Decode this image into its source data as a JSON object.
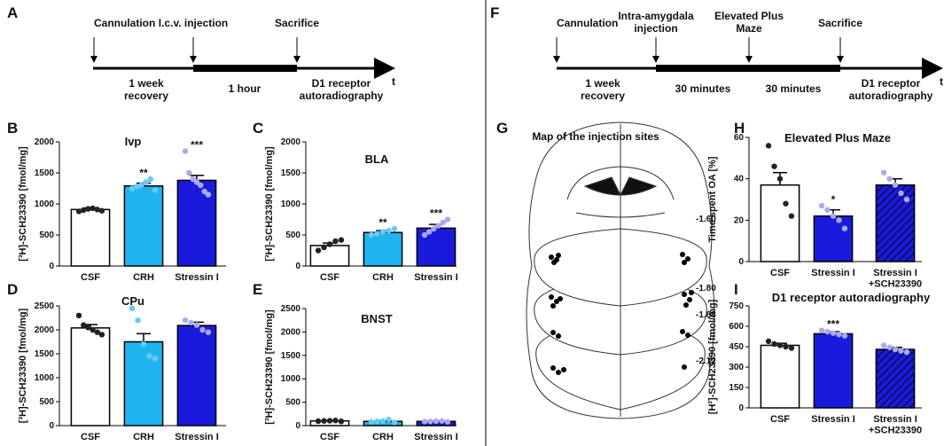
{
  "timelines": [
    {
      "letter": "A",
      "events": [
        "Cannulation",
        "I.c.v. injection",
        "Sacrifice"
      ],
      "periods": [
        "1 week\nrecovery",
        "1 hour",
        "D1 receptor\nautoradiography"
      ],
      "axis_label": "t"
    },
    {
      "letter": "F",
      "events": [
        "Cannulation",
        "Intra-amygdala\ninjection",
        "Elevated Plus\nMaze",
        "Sacrifice"
      ],
      "periods": [
        "1 week\nrecovery",
        "30 minutes",
        "30 minutes",
        "D1 receptor\nautoradiography"
      ],
      "axis_label": "t"
    }
  ],
  "injection_map": {
    "letter": "G",
    "title": "Map of the injection sites",
    "levels": [
      "-1.60",
      "-1.80",
      "-1.88",
      "-2.12"
    ]
  },
  "chart_data": [
    {
      "type": "bar",
      "letter": "B",
      "title": "Ivp",
      "ylabel": "[³H]-SCH23390 [fmol/mg]",
      "categories": [
        "CSF",
        "CRH",
        "Stressin I"
      ],
      "values": [
        910,
        1290,
        1380
      ],
      "errors": [
        25,
        45,
        80
      ],
      "points": [
        [
          880,
          900,
          920,
          930,
          910,
          890
        ],
        [
          1250,
          1280,
          1300,
          1350,
          1400,
          1220
        ],
        [
          1850,
          1500,
          1400,
          1350,
          1300,
          1200,
          1150
        ]
      ],
      "stars": [
        null,
        "**",
        "***"
      ],
      "colors": [
        "#ffffff",
        "#1eb4f0",
        "#1a1adc"
      ],
      "point_colors": [
        "#222222",
        "#6cc9f5",
        "#aaaaf0"
      ],
      "hatch": [
        false,
        false,
        false
      ],
      "ylim": [
        0,
        2000
      ],
      "yticks": [
        0,
        500,
        1000,
        1500,
        2000
      ]
    },
    {
      "type": "bar",
      "letter": "C",
      "title": "BLA",
      "ylabel": "[³H]-SCH23390 [fmol/mg]",
      "categories": [
        "CSF",
        "CRH",
        "Stressin I"
      ],
      "values": [
        330,
        540,
        610
      ],
      "errors": [
        40,
        30,
        60
      ],
      "points": [
        [
          250,
          300,
          350,
          400,
          420
        ],
        [
          500,
          520,
          550,
          570,
          600
        ],
        [
          500,
          550,
          600,
          650,
          700,
          750
        ]
      ],
      "stars": [
        null,
        "**",
        "***"
      ],
      "colors": [
        "#ffffff",
        "#1eb4f0",
        "#1a1adc"
      ],
      "point_colors": [
        "#222222",
        "#6cc9f5",
        "#aaaaf0"
      ],
      "hatch": [
        false,
        false,
        false
      ],
      "ylim": [
        0,
        2000
      ],
      "yticks": [
        0,
        500,
        1000,
        1500,
        2000
      ]
    },
    {
      "type": "bar",
      "letter": "D",
      "title": "CPu",
      "ylabel": "[³H]-SCH23390 [fmol/mg]",
      "categories": [
        "CSF",
        "CRH",
        "Stressin I"
      ],
      "values": [
        2040,
        1750,
        2090
      ],
      "errors": [
        70,
        170,
        70
      ],
      "points": [
        [
          2300,
          2100,
          2050,
          2000,
          1950,
          1900
        ],
        [
          2450,
          2200,
          1700,
          1450,
          1400
        ],
        [
          2200,
          2150,
          2100,
          2000,
          1950
        ]
      ],
      "stars": [
        null,
        null,
        null
      ],
      "colors": [
        "#ffffff",
        "#1eb4f0",
        "#1a1adc"
      ],
      "point_colors": [
        "#222222",
        "#6cc9f5",
        "#aaaaf0"
      ],
      "hatch": [
        false,
        false,
        false
      ],
      "ylim": [
        0,
        2500
      ],
      "yticks": [
        0,
        500,
        1000,
        1500,
        2000,
        2500
      ]
    },
    {
      "type": "bar",
      "letter": "E",
      "title": "BNST",
      "ylabel": "[³H]-SCH23390 [fmol/mg]",
      "categories": [
        "CSF",
        "CRH",
        "Stressin I"
      ],
      "values": [
        100,
        90,
        90
      ],
      "errors": [
        8,
        15,
        8
      ],
      "points": [
        [
          95,
          100,
          105,
          110,
          90
        ],
        [
          80,
          90,
          100,
          130,
          70
        ],
        [
          85,
          90,
          95,
          100,
          80
        ]
      ],
      "stars": [
        null,
        null,
        null
      ],
      "colors": [
        "#ffffff",
        "#1eb4f0",
        "#1a1adc"
      ],
      "point_colors": [
        "#222222",
        "#6cc9f5",
        "#aaaaf0"
      ],
      "hatch": [
        false,
        false,
        false
      ],
      "ylim": [
        0,
        2500
      ],
      "yticks": [
        0,
        500,
        1000,
        1500,
        2000,
        2500
      ]
    },
    {
      "type": "bar",
      "letter": "H",
      "title": "Elevated Plus Maze",
      "ylabel": "Time spent OA [%]",
      "categories": [
        "CSF",
        "Stressin I",
        "Stressin I\n+SCH23390"
      ],
      "values": [
        37,
        22,
        37
      ],
      "errors": [
        6,
        3,
        3
      ],
      "points": [
        [
          56,
          46,
          40,
          28,
          22
        ],
        [
          27,
          25,
          22,
          20,
          16
        ],
        [
          43,
          40,
          37,
          33,
          30
        ]
      ],
      "stars": [
        null,
        "*",
        null
      ],
      "colors": [
        "#ffffff",
        "#1a1adc",
        "#1a1adc"
      ],
      "point_colors": [
        "#222222",
        "#aaaaf0",
        "#aaaaf0"
      ],
      "hatch": [
        false,
        false,
        true
      ],
      "ylim": [
        0,
        60
      ],
      "yticks": [
        0,
        20,
        40,
        60
      ]
    },
    {
      "type": "bar",
      "letter": "I",
      "title": "D1 receptor autoradiography",
      "ylabel": "[H³]-SCH23390 [fmol/mg]",
      "categories": [
        "CSF",
        "Stressin I",
        "Stressin I\n+SCH23390"
      ],
      "values": [
        460,
        545,
        430
      ],
      "errors": [
        15,
        15,
        15
      ],
      "points": [
        [
          490,
          470,
          460,
          450,
          440
        ],
        [
          570,
          560,
          550,
          540,
          530
        ],
        [
          460,
          445,
          430,
          420,
          410
        ]
      ],
      "stars": [
        null,
        "***",
        null
      ],
      "colors": [
        "#ffffff",
        "#1a1adc",
        "#1a1adc"
      ],
      "point_colors": [
        "#222222",
        "#aaaaf0",
        "#aaaaf0"
      ],
      "hatch": [
        false,
        false,
        true
      ],
      "ylim": [
        0,
        750
      ],
      "yticks": [
        0,
        150,
        300,
        450,
        600,
        750
      ]
    }
  ]
}
